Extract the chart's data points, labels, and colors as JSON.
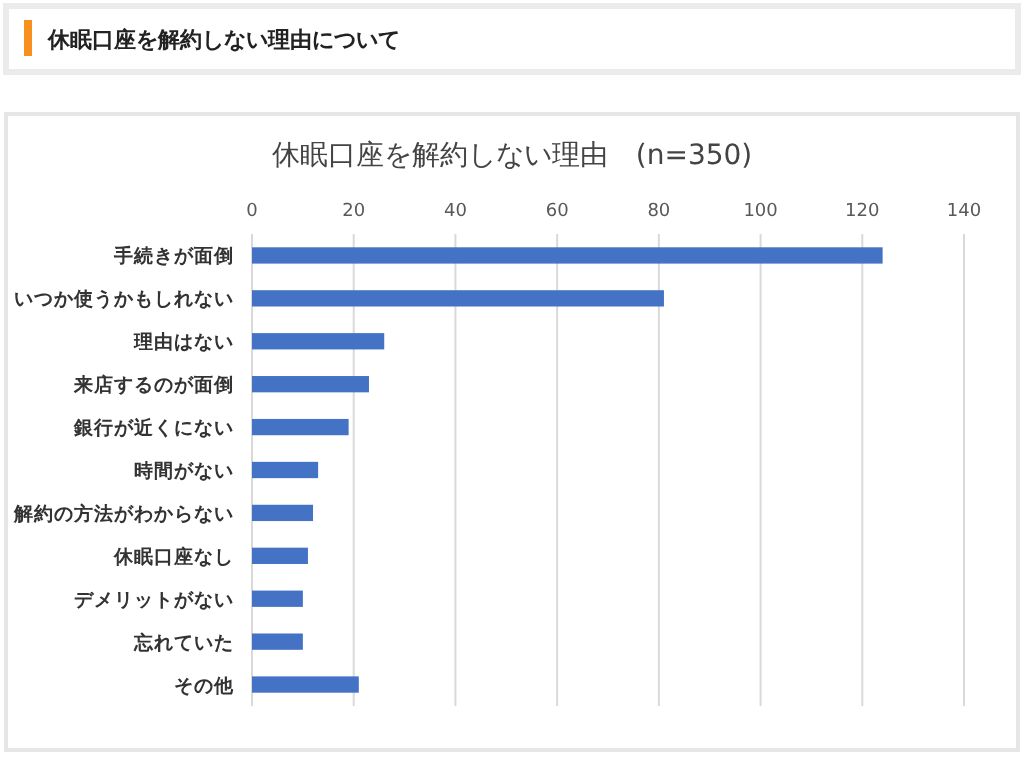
{
  "chart_data": {
    "type": "bar",
    "orientation": "horizontal",
    "title": "休眠口座を解約しない理由について",
    "subtitle": "休眠口座を解約しない理由　(n=350)",
    "categories": [
      "手続きが面倒",
      "いつか使うかもしれない",
      "理由はない",
      "来店するのが面倒",
      "銀行が近くにない",
      "時間がない",
      "解約の方法がわからない",
      "休眠口座なし",
      "デメリットがない",
      "忘れていた",
      "その他"
    ],
    "values": [
      124,
      81,
      26,
      23,
      19,
      13,
      12,
      11,
      10,
      10,
      21
    ],
    "color": "#4472c4",
    "xlim": [
      0,
      140
    ],
    "xticks": [
      0,
      20,
      40,
      60,
      80,
      100,
      120,
      140
    ],
    "grid": "x"
  }
}
